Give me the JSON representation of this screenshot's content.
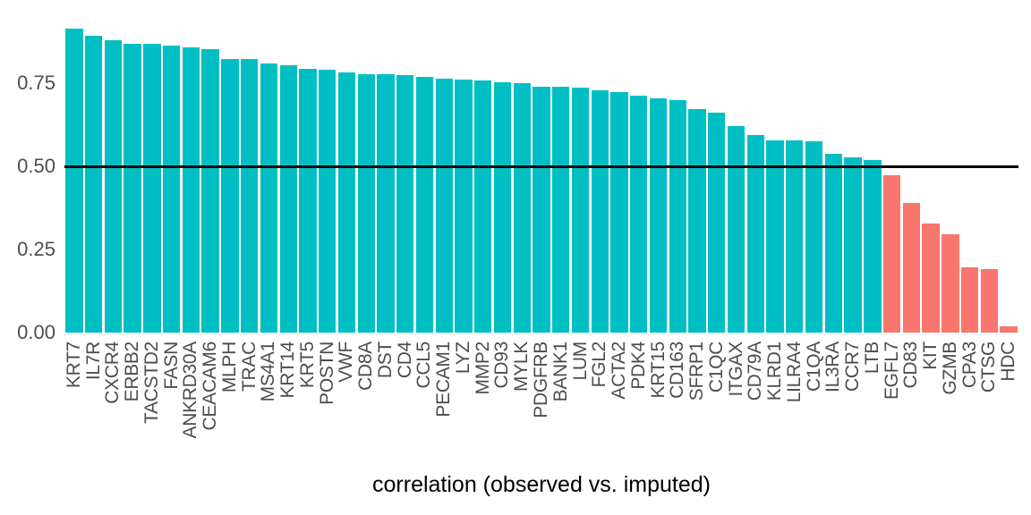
{
  "chart_data": {
    "type": "bar",
    "title": "",
    "xlabel": "correlation (observed vs. imputed)",
    "ylabel": "",
    "categories": [
      "KRT7",
      "IL7R",
      "CXCR4",
      "ERBB2",
      "TACSTD2",
      "FASN",
      "ANKRD30A",
      "CEACAM6",
      "MLPH",
      "TRAC",
      "MS4A1",
      "KRT14",
      "KRT5",
      "POSTN",
      "VWF",
      "CD8A",
      "DST",
      "CD4",
      "CCL5",
      "PECAM1",
      "LYZ",
      "MMP2",
      "CD93",
      "MYLK",
      "PDGFRB",
      "BANK1",
      "LUM",
      "FGL2",
      "ACTA2",
      "PDK4",
      "KRT15",
      "CD163",
      "SFRP1",
      "C1QC",
      "ITGAX",
      "CD79A",
      "KLRD1",
      "LILRA4",
      "C1QA",
      "IL3RA",
      "CCR7",
      "LTB",
      "EGFL7",
      "CD83",
      "KIT",
      "GZMB",
      "CPA3",
      "CTSG",
      "HDC"
    ],
    "values": [
      0.914,
      0.892,
      0.879,
      0.868,
      0.868,
      0.863,
      0.858,
      0.852,
      0.823,
      0.822,
      0.809,
      0.804,
      0.793,
      0.79,
      0.782,
      0.778,
      0.777,
      0.774,
      0.769,
      0.764,
      0.761,
      0.758,
      0.753,
      0.75,
      0.74,
      0.739,
      0.737,
      0.728,
      0.723,
      0.712,
      0.703,
      0.699,
      0.672,
      0.662,
      0.621,
      0.594,
      0.578,
      0.577,
      0.576,
      0.538,
      0.527,
      0.519,
      0.473,
      0.39,
      0.328,
      0.296,
      0.196,
      0.191,
      0.019
    ],
    "threshold": 0.5,
    "ylim": [
      0,
      1.0
    ],
    "yticks": [
      0,
      0.25,
      0.5,
      0.75
    ],
    "ytick_labels": [
      "0.00",
      "0.25",
      "0.50",
      "0.75"
    ],
    "colors": {
      "above_threshold": "#00BFC4",
      "below_threshold": "#F8766D",
      "threshold_line": "#000000",
      "axis_text": "#4d4d4d",
      "axis_title": "#000000"
    },
    "grid": false,
    "legend": false,
    "x_labels_rotated_degrees": 90
  }
}
